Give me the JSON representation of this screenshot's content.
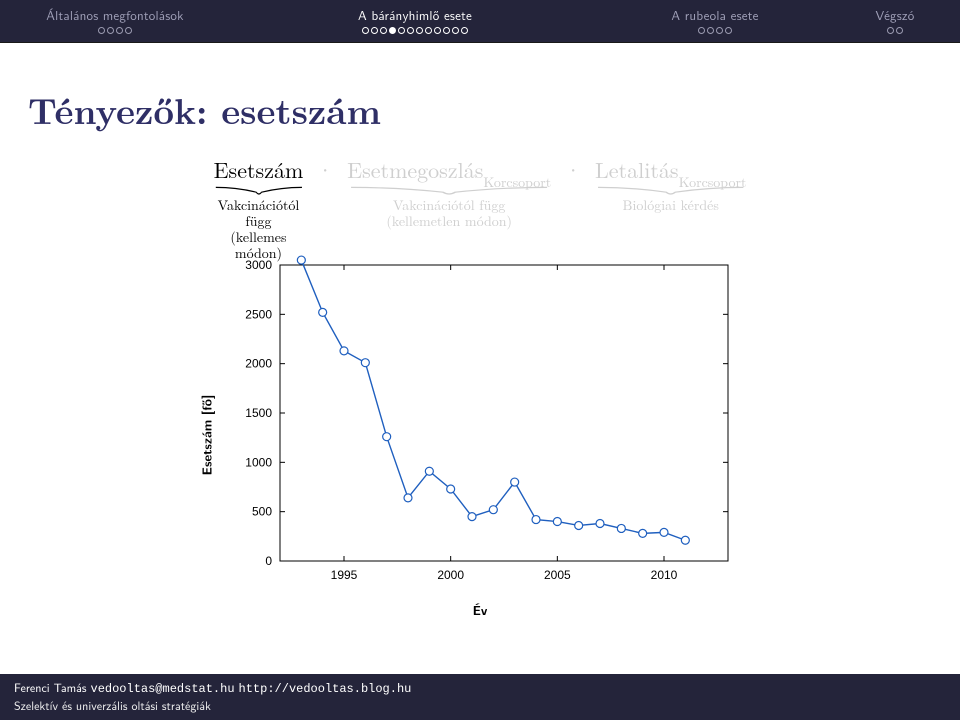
{
  "nav": {
    "sections": [
      {
        "title": "Általános megfontolások",
        "dots": 4,
        "active": false,
        "progress": 0
      },
      {
        "title": "A bárányhimlő esete",
        "dots": 12,
        "active": true,
        "progress": 3
      },
      {
        "title": "A rubeola esete",
        "dots": 4,
        "active": false,
        "progress": 0
      },
      {
        "title": "Végszó",
        "dots": 2,
        "active": false,
        "progress": 0
      }
    ],
    "widths": [
      230,
      370,
      230,
      130
    ],
    "bg_color": "#24243a",
    "title_color_inactive": "#a0a0b8",
    "title_color_active": "#ffffff",
    "dot_border_inactive": "#9a9ab0",
    "dot_border_active": "#ffffff"
  },
  "slide_title": "Tényezők: esetszám",
  "formula": {
    "term1": {
      "top": "Esetszám",
      "under1": "Vakcinációtól függ",
      "under2": "(kellemes módon)",
      "dim": false
    },
    "term2": {
      "top": "Esetmegoszlás",
      "sub": "Korcsoport",
      "under1": "Vakcinációtól függ",
      "under2": "(kellemetlen módon)",
      "dim": true
    },
    "term3": {
      "top": "Letalitás",
      "sub": "Korcsoport",
      "under1": "Biológiai kérdés",
      "under2": "",
      "dim": true
    },
    "cdot": "·"
  },
  "chart": {
    "type": "line",
    "ylabel": "Esetszám [fő]",
    "xlabel": "Év",
    "xlim": [
      1992,
      2013
    ],
    "ylim": [
      0,
      3000
    ],
    "xticks": [
      1995,
      2000,
      2005,
      2010
    ],
    "yticks": [
      0,
      500,
      1000,
      1500,
      2000,
      2500,
      3000
    ],
    "tick_fontsize": 12,
    "label_fontsize": 13,
    "line_color": "#1f5fbf",
    "marker_color": "#1f5fbf",
    "marker_fill": "#ffffff",
    "marker_type": "circle",
    "marker_size": 4,
    "line_width": 1.4,
    "frame_color": "#000000",
    "background_color": "#ffffff",
    "tick_len": 5,
    "x": [
      1993,
      1994,
      1995,
      1996,
      1997,
      1998,
      1999,
      2000,
      2001,
      2002,
      2003,
      2004,
      2005,
      2006,
      2007,
      2008,
      2009,
      2010,
      2011
    ],
    "y": [
      3050,
      2520,
      2130,
      2010,
      1260,
      640,
      910,
      730,
      450,
      520,
      800,
      420,
      400,
      360,
      380,
      330,
      280,
      290,
      210
    ]
  },
  "footer": {
    "author": "Ferenci Tamás",
    "email": "vedooltas@medstat.hu",
    "url": "http://vedooltas.blog.hu",
    "line2": "Szelektív és univerzális oltási stratégiák"
  },
  "colors": {
    "title": "#2f2f66",
    "dim": "#cfcfcf"
  }
}
